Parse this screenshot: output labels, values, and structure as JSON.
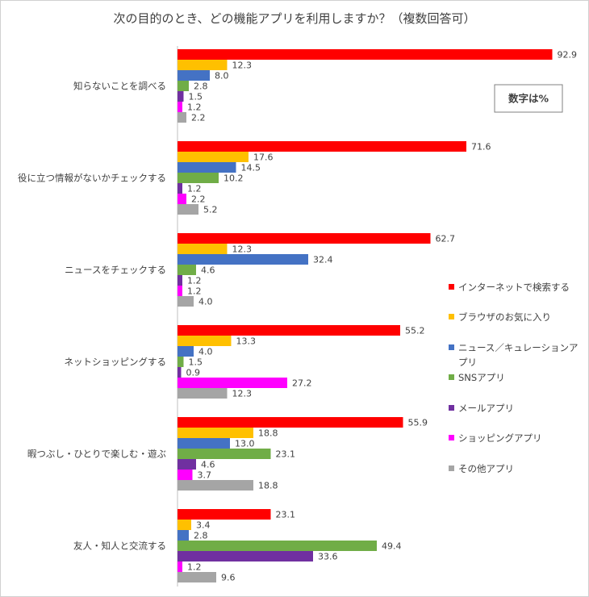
{
  "chart_data": {
    "type": "bar",
    "orientation": "horizontal",
    "title": "次の目的のとき、どの機能アプリを利用しますか？（複数回答可）",
    "note": "数字は%",
    "xlim": [
      0,
      100
    ],
    "categories": [
      "知らないことを調べる",
      "役に立つ情報がないかチェックする",
      "ニュースをチェックする",
      "ネットショッピングする",
      "暇つぶし・ひとりで楽しむ・遊ぶ",
      "友人・知人と交流する"
    ],
    "series": [
      {
        "name": "インターネットで検索する",
        "color": "#ff0000",
        "values": [
          92.9,
          71.6,
          62.7,
          55.2,
          55.9,
          23.1
        ]
      },
      {
        "name": "ブラウザのお気に入り",
        "color": "#ffc000",
        "values": [
          12.3,
          17.6,
          12.3,
          13.3,
          18.8,
          3.4
        ]
      },
      {
        "name": "ニュース／キュレーションアプリ",
        "color": "#4472c4",
        "values": [
          8.0,
          14.5,
          32.4,
          4.0,
          13.0,
          2.8
        ]
      },
      {
        "name": "SNSアプリ",
        "color": "#70ad47",
        "values": [
          2.8,
          10.2,
          4.6,
          1.5,
          23.1,
          49.4
        ]
      },
      {
        "name": "メールアプリ",
        "color": "#7030a0",
        "values": [
          1.5,
          1.2,
          1.2,
          0.9,
          4.6,
          33.6
        ]
      },
      {
        "name": "ショッピングアプリ",
        "color": "#ff00ff",
        "values": [
          1.2,
          2.2,
          1.2,
          27.2,
          3.7,
          1.2
        ]
      },
      {
        "name": "その他アプリ",
        "color": "#a5a5a5",
        "values": [
          2.2,
          5.2,
          4.0,
          12.3,
          18.8,
          9.6
        ]
      }
    ],
    "legend_position": "right",
    "gridlines": false
  }
}
